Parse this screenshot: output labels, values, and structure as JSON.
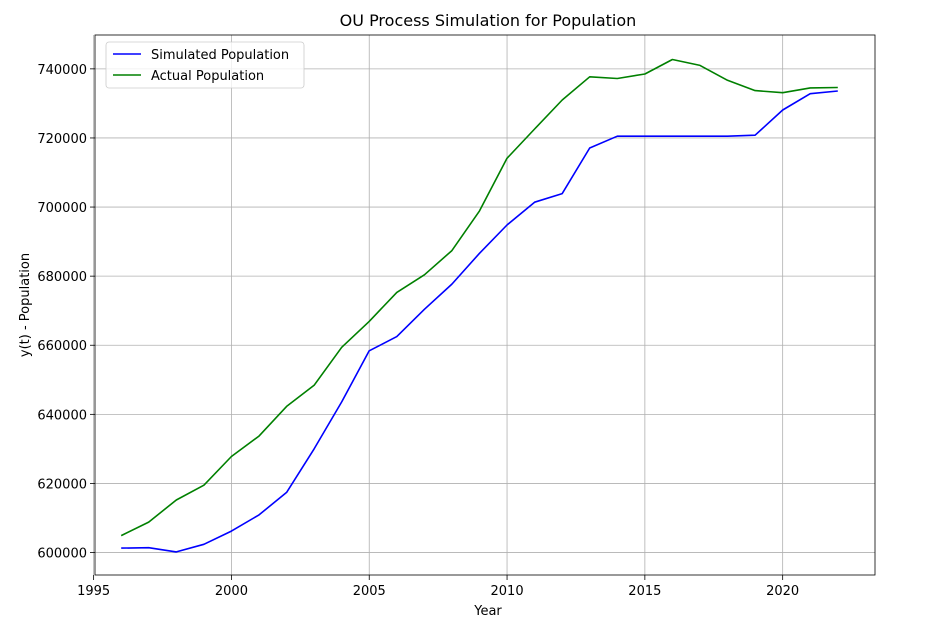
{
  "chart_data": {
    "type": "line",
    "title": "OU Process Simulation for Population",
    "xlabel": "Year",
    "ylabel": "y(t) - Population",
    "xlim": [
      1995.05,
      2023.35
    ],
    "ylim": [
      593500,
      749800
    ],
    "x_ticks": [
      1995,
      2000,
      2005,
      2010,
      2015,
      2020
    ],
    "y_ticks": [
      600000,
      620000,
      640000,
      660000,
      680000,
      700000,
      720000,
      740000
    ],
    "grid": true,
    "legend_position": "top-left",
    "x": [
      1996,
      1997,
      1998,
      1999,
      2000,
      2001,
      2002,
      2003,
      2004,
      2005,
      2006,
      2007,
      2008,
      2009,
      2010,
      2011,
      2012,
      2013,
      2014,
      2015,
      2016,
      2017,
      2018,
      2019,
      2020,
      2021,
      2022
    ],
    "series": [
      {
        "name": "Simulated Population",
        "color": "#0000ff",
        "values": [
          601300,
          601400,
          600200,
          602400,
          606200,
          610900,
          617400,
          630000,
          643600,
          658400,
          662500,
          670400,
          677700,
          686600,
          694800,
          701400,
          703900,
          717100,
          720500,
          720500,
          720500,
          720500,
          720500,
          720800,
          728100,
          732800,
          733600
        ]
      },
      {
        "name": "Actual Population",
        "color": "#008000",
        "values": [
          604900,
          608800,
          615200,
          619500,
          627800,
          633700,
          642300,
          648400,
          659400,
          666900,
          675300,
          680400,
          687400,
          698900,
          714100,
          722600,
          731000,
          737700,
          737200,
          738500,
          742700,
          741000,
          736700,
          733700,
          733100,
          734500,
          734600
        ]
      }
    ]
  }
}
